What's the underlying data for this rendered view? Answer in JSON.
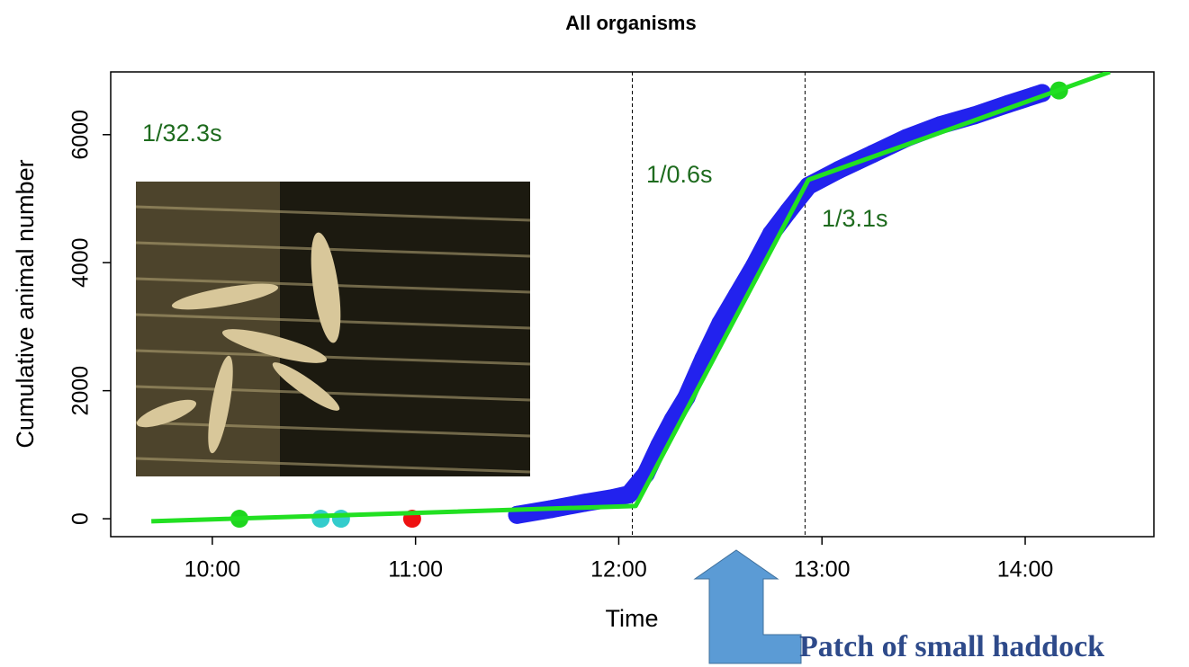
{
  "chart_data": {
    "type": "line",
    "title": "All organisms",
    "xlabel": "Time",
    "ylabel": "Cumulative animal number",
    "xlim": [
      "09:30",
      "14:38"
    ],
    "ylim": [
      -280,
      6980
    ],
    "xticks": [
      "10:00",
      "11:00",
      "12:00",
      "13:00",
      "14:00"
    ],
    "yticks": [
      0,
      2000,
      4000,
      6000
    ],
    "breaks": [
      "12:04",
      "12:55"
    ],
    "series": [
      {
        "type": "scatter",
        "color": "#2222ee",
        "x": [
          "11:30",
          "11:40",
          "11:50",
          "11:58",
          "12:03",
          "12:08",
          "12:12",
          "12:16",
          "12:20",
          "12:25",
          "12:30",
          "12:35",
          "12:40",
          "12:45",
          "12:50",
          "12:56",
          "13:05",
          "13:15",
          "13:25",
          "13:35",
          "13:45",
          "13:55",
          "14:05"
        ],
        "values": [
          60,
          150,
          250,
          320,
          380,
          700,
          1150,
          1550,
          1900,
          2500,
          3050,
          3500,
          3950,
          4450,
          4800,
          5200,
          5450,
          5700,
          5950,
          6150,
          6300,
          6480,
          6650
        ]
      },
      {
        "type": "scatter",
        "color": "#1ed61e",
        "x": [
          "10:08",
          "14:10"
        ],
        "values": [
          0,
          6690
        ]
      },
      {
        "type": "scatter",
        "color": "#33cccc",
        "x": [
          "10:32",
          "10:38"
        ],
        "values": [
          0,
          0
        ]
      },
      {
        "type": "scatter",
        "color": "#ee1111",
        "x": [
          "10:59"
        ],
        "values": [
          0
        ]
      },
      {
        "type": "line",
        "color": "#22e022",
        "x": [
          "09:42",
          "12:05",
          "12:56",
          "14:25"
        ],
        "values": [
          -40,
          200,
          5295,
          6980
        ]
      }
    ],
    "annotations": [
      "1/32.3s",
      "1/0.6s",
      "1/3.1s"
    ],
    "callout": "Patch of small haddock"
  }
}
